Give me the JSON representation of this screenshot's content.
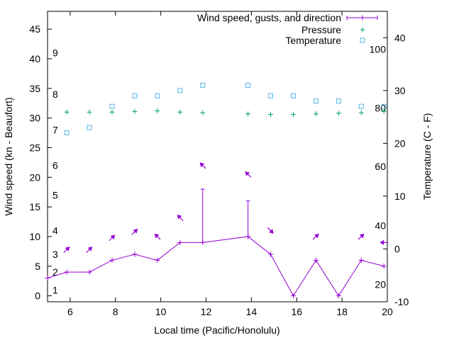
{
  "chart_data": {
    "type": "line",
    "xlabel": "Local time (Pacific/Honolulu)",
    "ylabel": "Wind speed (kn - Beaufort)",
    "y2label": "Temperature (C - F)",
    "xlim": [
      5,
      20
    ],
    "ylim": [
      -1,
      48
    ],
    "y2lim": [
      -10,
      45
    ],
    "x_ticks": [
      6,
      8,
      10,
      12,
      14,
      16,
      18,
      20
    ],
    "y_ticks": [
      0,
      5,
      10,
      15,
      20,
      25,
      30,
      35,
      40,
      45
    ],
    "y2_ticks": [
      -10,
      0,
      10,
      20,
      30,
      40
    ],
    "beaufort_labels": [
      {
        "label": "1",
        "y": 1
      },
      {
        "label": "2",
        "y": 4
      },
      {
        "label": "3",
        "y": 7
      },
      {
        "label": "4",
        "y": 11
      },
      {
        "label": "5",
        "y": 17
      },
      {
        "label": "6",
        "y": 22
      },
      {
        "label": "7",
        "y": 28
      },
      {
        "label": "8",
        "y": 34
      },
      {
        "label": "9",
        "y": 41
      }
    ],
    "fahrenheit_labels": [
      {
        "label": "20",
        "c": -6.7
      },
      {
        "label": "40",
        "c": 4.4
      },
      {
        "label": "60",
        "c": 15.6
      },
      {
        "label": "80",
        "c": 26.7
      },
      {
        "label": "100",
        "c": 37.8
      }
    ],
    "legend": [
      {
        "name": "Wind speed, gusts, and direction",
        "color": "#9400d3",
        "marker": "line-plus"
      },
      {
        "name": "Pressure",
        "color": "#009e73",
        "marker": "plus"
      },
      {
        "name": "Temperature",
        "color": "#56b4e9",
        "marker": "square"
      }
    ],
    "wind": {
      "x": [
        5,
        5.85,
        6.85,
        7.85,
        8.85,
        9.85,
        10.85,
        11.85,
        13.85,
        14.85,
        15.85,
        16.85,
        17.85,
        18.85,
        19.85
      ],
      "speed": [
        3,
        4,
        4,
        6,
        7,
        6,
        9,
        9,
        10,
        7,
        0,
        6,
        0,
        6,
        5
      ],
      "gust": [
        null,
        null,
        null,
        null,
        null,
        null,
        null,
        18,
        16,
        null,
        null,
        null,
        null,
        null,
        null
      ]
    },
    "wind_arrows": [
      {
        "x": 5.85,
        "y": 7.8,
        "dir": "NE"
      },
      {
        "x": 6.85,
        "y": 7.8,
        "dir": "NE"
      },
      {
        "x": 7.85,
        "y": 9.8,
        "dir": "NE"
      },
      {
        "x": 8.85,
        "y": 10.8,
        "dir": "NE"
      },
      {
        "x": 9.85,
        "y": 10.0,
        "dir": "NW"
      },
      {
        "x": 10.85,
        "y": 13.2,
        "dir": "NW"
      },
      {
        "x": 11.85,
        "y": 22.0,
        "dir": "NW"
      },
      {
        "x": 13.85,
        "y": 20.5,
        "dir": "NW"
      },
      {
        "x": 14.85,
        "y": 11.0,
        "dir": "SE"
      },
      {
        "x": 16.85,
        "y": 10.0,
        "dir": "NE"
      },
      {
        "x": 18.85,
        "y": 10.0,
        "dir": "NE"
      },
      {
        "x": 19.85,
        "y": 9.0,
        "dir": "W"
      }
    ],
    "pressure": {
      "x": [
        5.85,
        6.85,
        7.85,
        8.85,
        9.85,
        10.85,
        11.85,
        13.85,
        14.85,
        15.85,
        16.85,
        17.85,
        18.85,
        19.85
      ],
      "y": [
        31.0,
        31.0,
        31.0,
        31.1,
        31.2,
        31.0,
        30.9,
        30.7,
        30.6,
        30.6,
        30.7,
        30.8,
        30.9,
        31.1
      ]
    },
    "temperature": {
      "x": [
        5.85,
        6.85,
        7.85,
        8.85,
        9.85,
        10.85,
        11.85,
        13.85,
        14.85,
        15.85,
        16.85,
        17.85,
        18.85,
        19.85
      ],
      "c": [
        22,
        23,
        27,
        29,
        29,
        30,
        31,
        31,
        29,
        29,
        28,
        28,
        27,
        27
      ]
    }
  }
}
